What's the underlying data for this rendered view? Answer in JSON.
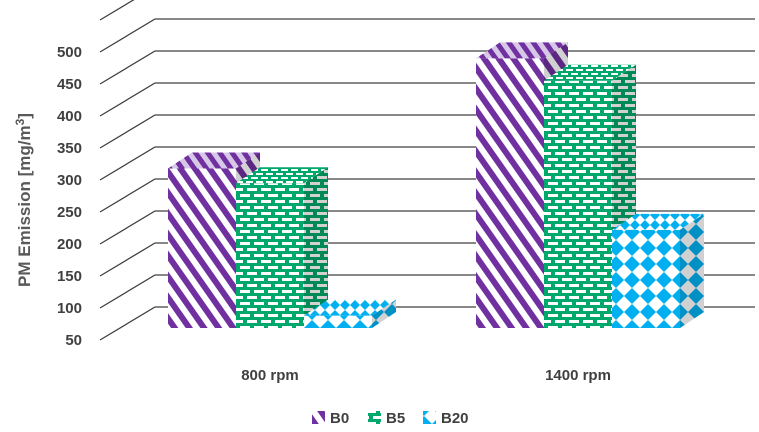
{
  "chart_data": {
    "type": "bar",
    "categories": [
      "800 rpm",
      "1400 rpm"
    ],
    "series": [
      {
        "name": "B0",
        "values": [
          318,
          490
        ],
        "color": "#7030a0"
      },
      {
        "name": "B5",
        "values": [
          295,
          455
        ],
        "color": "#00a86b"
      },
      {
        "name": "B20",
        "values": [
          88,
          222
        ],
        "color": "#00b0f0"
      }
    ],
    "yticks": [
      "50",
      "100",
      "150",
      "200",
      "250",
      "300",
      "350",
      "400",
      "450",
      "500"
    ],
    "ylabel": "PM Emission [mg/m",
    "ylabel_sup": "3",
    "ylabel_end": "]",
    "ylim": [
      50,
      550
    ],
    "grid": true,
    "legend_position": "bottom",
    "three_d": true
  }
}
